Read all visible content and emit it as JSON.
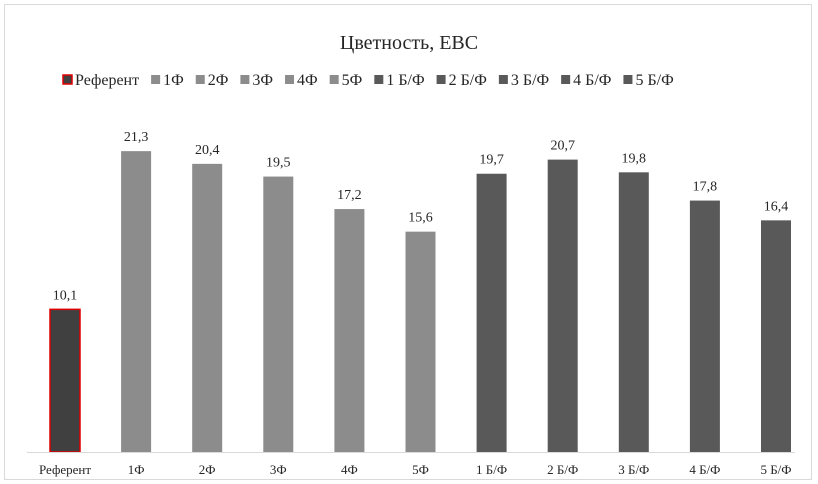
{
  "chart_data": {
    "type": "bar",
    "title": "Цветность, ЕВС",
    "xlabel": "",
    "ylabel": "",
    "ylim": [
      0,
      24
    ],
    "grid": false,
    "legend_position": "top",
    "categories": [
      "Референт",
      "1Ф",
      "2Ф",
      "3Ф",
      "4Ф",
      "5Ф",
      "1 Б/Ф",
      "2 Б/Ф",
      "3 Б/Ф",
      "4 Б/Ф",
      "5 Б/Ф"
    ],
    "values": [
      10.1,
      21.3,
      20.4,
      19.5,
      17.2,
      15.6,
      19.7,
      20.7,
      19.8,
      17.8,
      16.4
    ],
    "value_labels": [
      "10,1",
      "21,3",
      "20,4",
      "19,5",
      "17,2",
      "15,6",
      "19,7",
      "20,7",
      "19,8",
      "17,8",
      "16,4"
    ],
    "legend_entries": [
      "Референт",
      "1Ф",
      "2Ф",
      "3Ф",
      "4Ф",
      "5Ф",
      "1 Б/Ф",
      "2 Б/Ф",
      "3 Б/Ф",
      "4 Б/Ф",
      "5 Б/Ф"
    ],
    "bar_colors": [
      "#404040",
      "#8c8c8c",
      "#8c8c8c",
      "#8c8c8c",
      "#8c8c8c",
      "#8c8c8c",
      "#595959",
      "#595959",
      "#595959",
      "#595959",
      "#595959"
    ],
    "highlight_outline_color": "#e00000",
    "highlight_index": 0,
    "axis_color": "#d9d9d9"
  }
}
